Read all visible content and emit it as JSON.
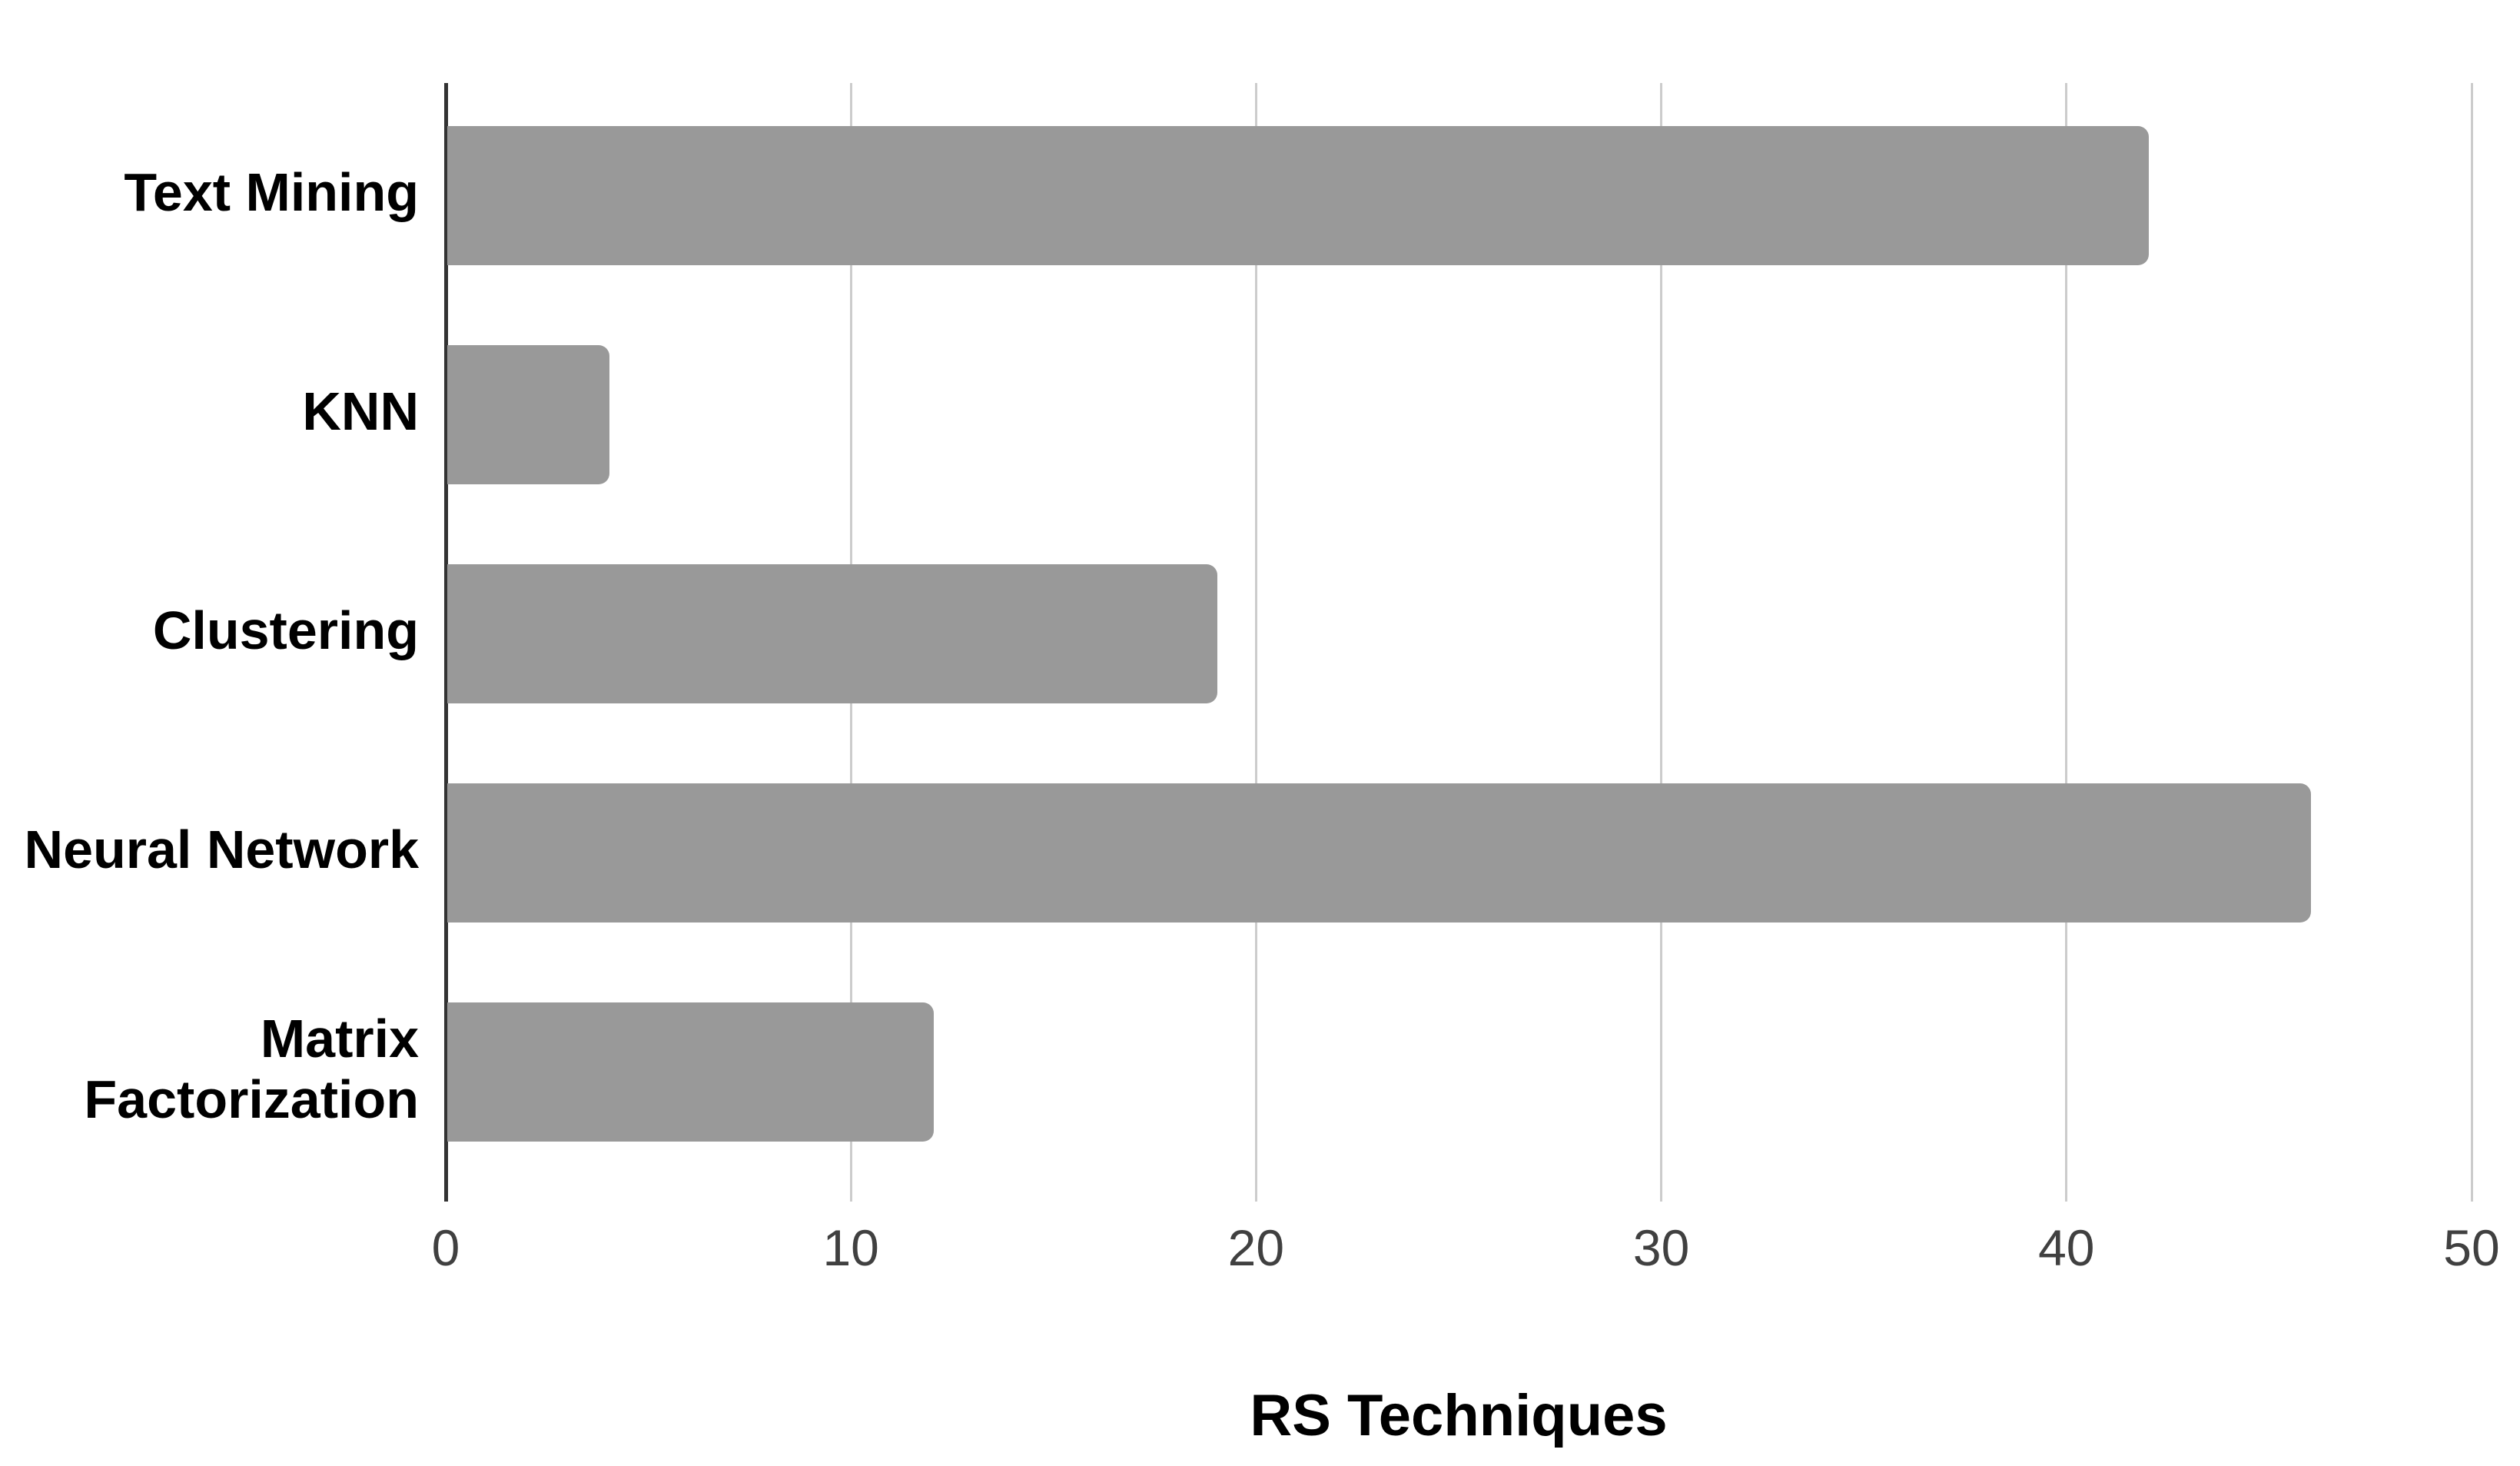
{
  "chart_data": {
    "type": "bar",
    "orientation": "horizontal",
    "title": "RS Techniques",
    "xlabel": "RS Techniques",
    "ylabel": "",
    "categories": [
      "Text Mining",
      "KNN",
      "Clustering",
      "Neural Network",
      "Matrix Factorization"
    ],
    "values": [
      42,
      4,
      19,
      46,
      12
    ],
    "xlim": [
      0,
      50
    ],
    "xticks": [
      0,
      10,
      20,
      30,
      40,
      50
    ],
    "grid": true,
    "legend": false,
    "colors": {
      "bar": "#999999",
      "gridline": "#cccccc",
      "zero_axis": "#333333",
      "category_label": "#000000",
      "tick_label": "#404040",
      "title": "#000000",
      "background": "#ffffff"
    }
  }
}
